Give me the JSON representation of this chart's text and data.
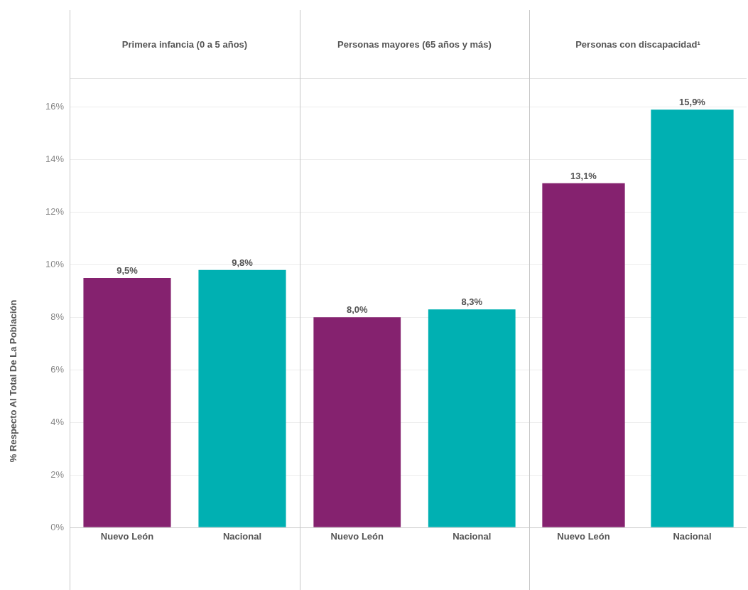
{
  "chart_data": [
    {
      "type": "bar",
      "title": "Primera infancia (0 a 5 años)",
      "ylabel": "% Respecto Al Total De La Población",
      "categories": [
        "Nuevo León",
        "Nacional"
      ],
      "values": [
        9.5,
        9.8
      ],
      "colors": [
        "#85226f",
        "#00b0b2"
      ],
      "value_labels": [
        "9,5%",
        "9,8%"
      ],
      "ylim": [
        0,
        17.1
      ],
      "yticks": [
        {
          "value": 0,
          "label": "0%"
        },
        {
          "value": 2,
          "label": "2%"
        },
        {
          "value": 4,
          "label": "4%"
        },
        {
          "value": 6,
          "label": "6%"
        },
        {
          "value": 8,
          "label": "8%"
        },
        {
          "value": 10,
          "label": "10%"
        },
        {
          "value": 12,
          "label": "12%"
        },
        {
          "value": 14,
          "label": "14%"
        },
        {
          "value": 16,
          "label": "16%"
        }
      ],
      "grid": "y",
      "legend": false
    },
    {
      "type": "bar",
      "title": "Personas mayores (65 años y más)",
      "categories": [
        "Nuevo León",
        "Nacional"
      ],
      "values": [
        8.0,
        8.3
      ],
      "colors": [
        "#85226f",
        "#00b0b2"
      ],
      "value_labels": [
        "8,0%",
        "8,3%"
      ],
      "ylim": [
        0,
        17.1
      ],
      "yticks": [
        {
          "value": 0,
          "label": null
        },
        {
          "value": 2,
          "label": null
        },
        {
          "value": 4,
          "label": null
        },
        {
          "value": 6,
          "label": null
        },
        {
          "value": 8,
          "label": null
        },
        {
          "value": 10,
          "label": null
        },
        {
          "value": 12,
          "label": null
        },
        {
          "value": 14,
          "label": null
        },
        {
          "value": 16,
          "label": null
        }
      ],
      "grid": "y",
      "legend": false,
      "tick_labels": "x"
    },
    {
      "type": "bar",
      "title": "Personas con discapacidad¹",
      "categories": [
        "Nuevo León",
        "Nacional"
      ],
      "values": [
        13.1,
        15.9
      ],
      "colors": [
        "#85226f",
        "#00b0b2"
      ],
      "value_labels": [
        "13,1%",
        "15,9%"
      ],
      "ylim": [
        0,
        17.1
      ],
      "yticks": [
        {
          "value": 0,
          "label": null
        },
        {
          "value": 2,
          "label": null
        },
        {
          "value": 4,
          "label": null
        },
        {
          "value": 6,
          "label": null
        },
        {
          "value": 8,
          "label": null
        },
        {
          "value": 10,
          "label": null
        },
        {
          "value": 12,
          "label": null
        },
        {
          "value": 14,
          "label": null
        },
        {
          "value": 16,
          "label": null
        }
      ],
      "grid": "y",
      "legend": false,
      "tick_labels": "x"
    }
  ]
}
